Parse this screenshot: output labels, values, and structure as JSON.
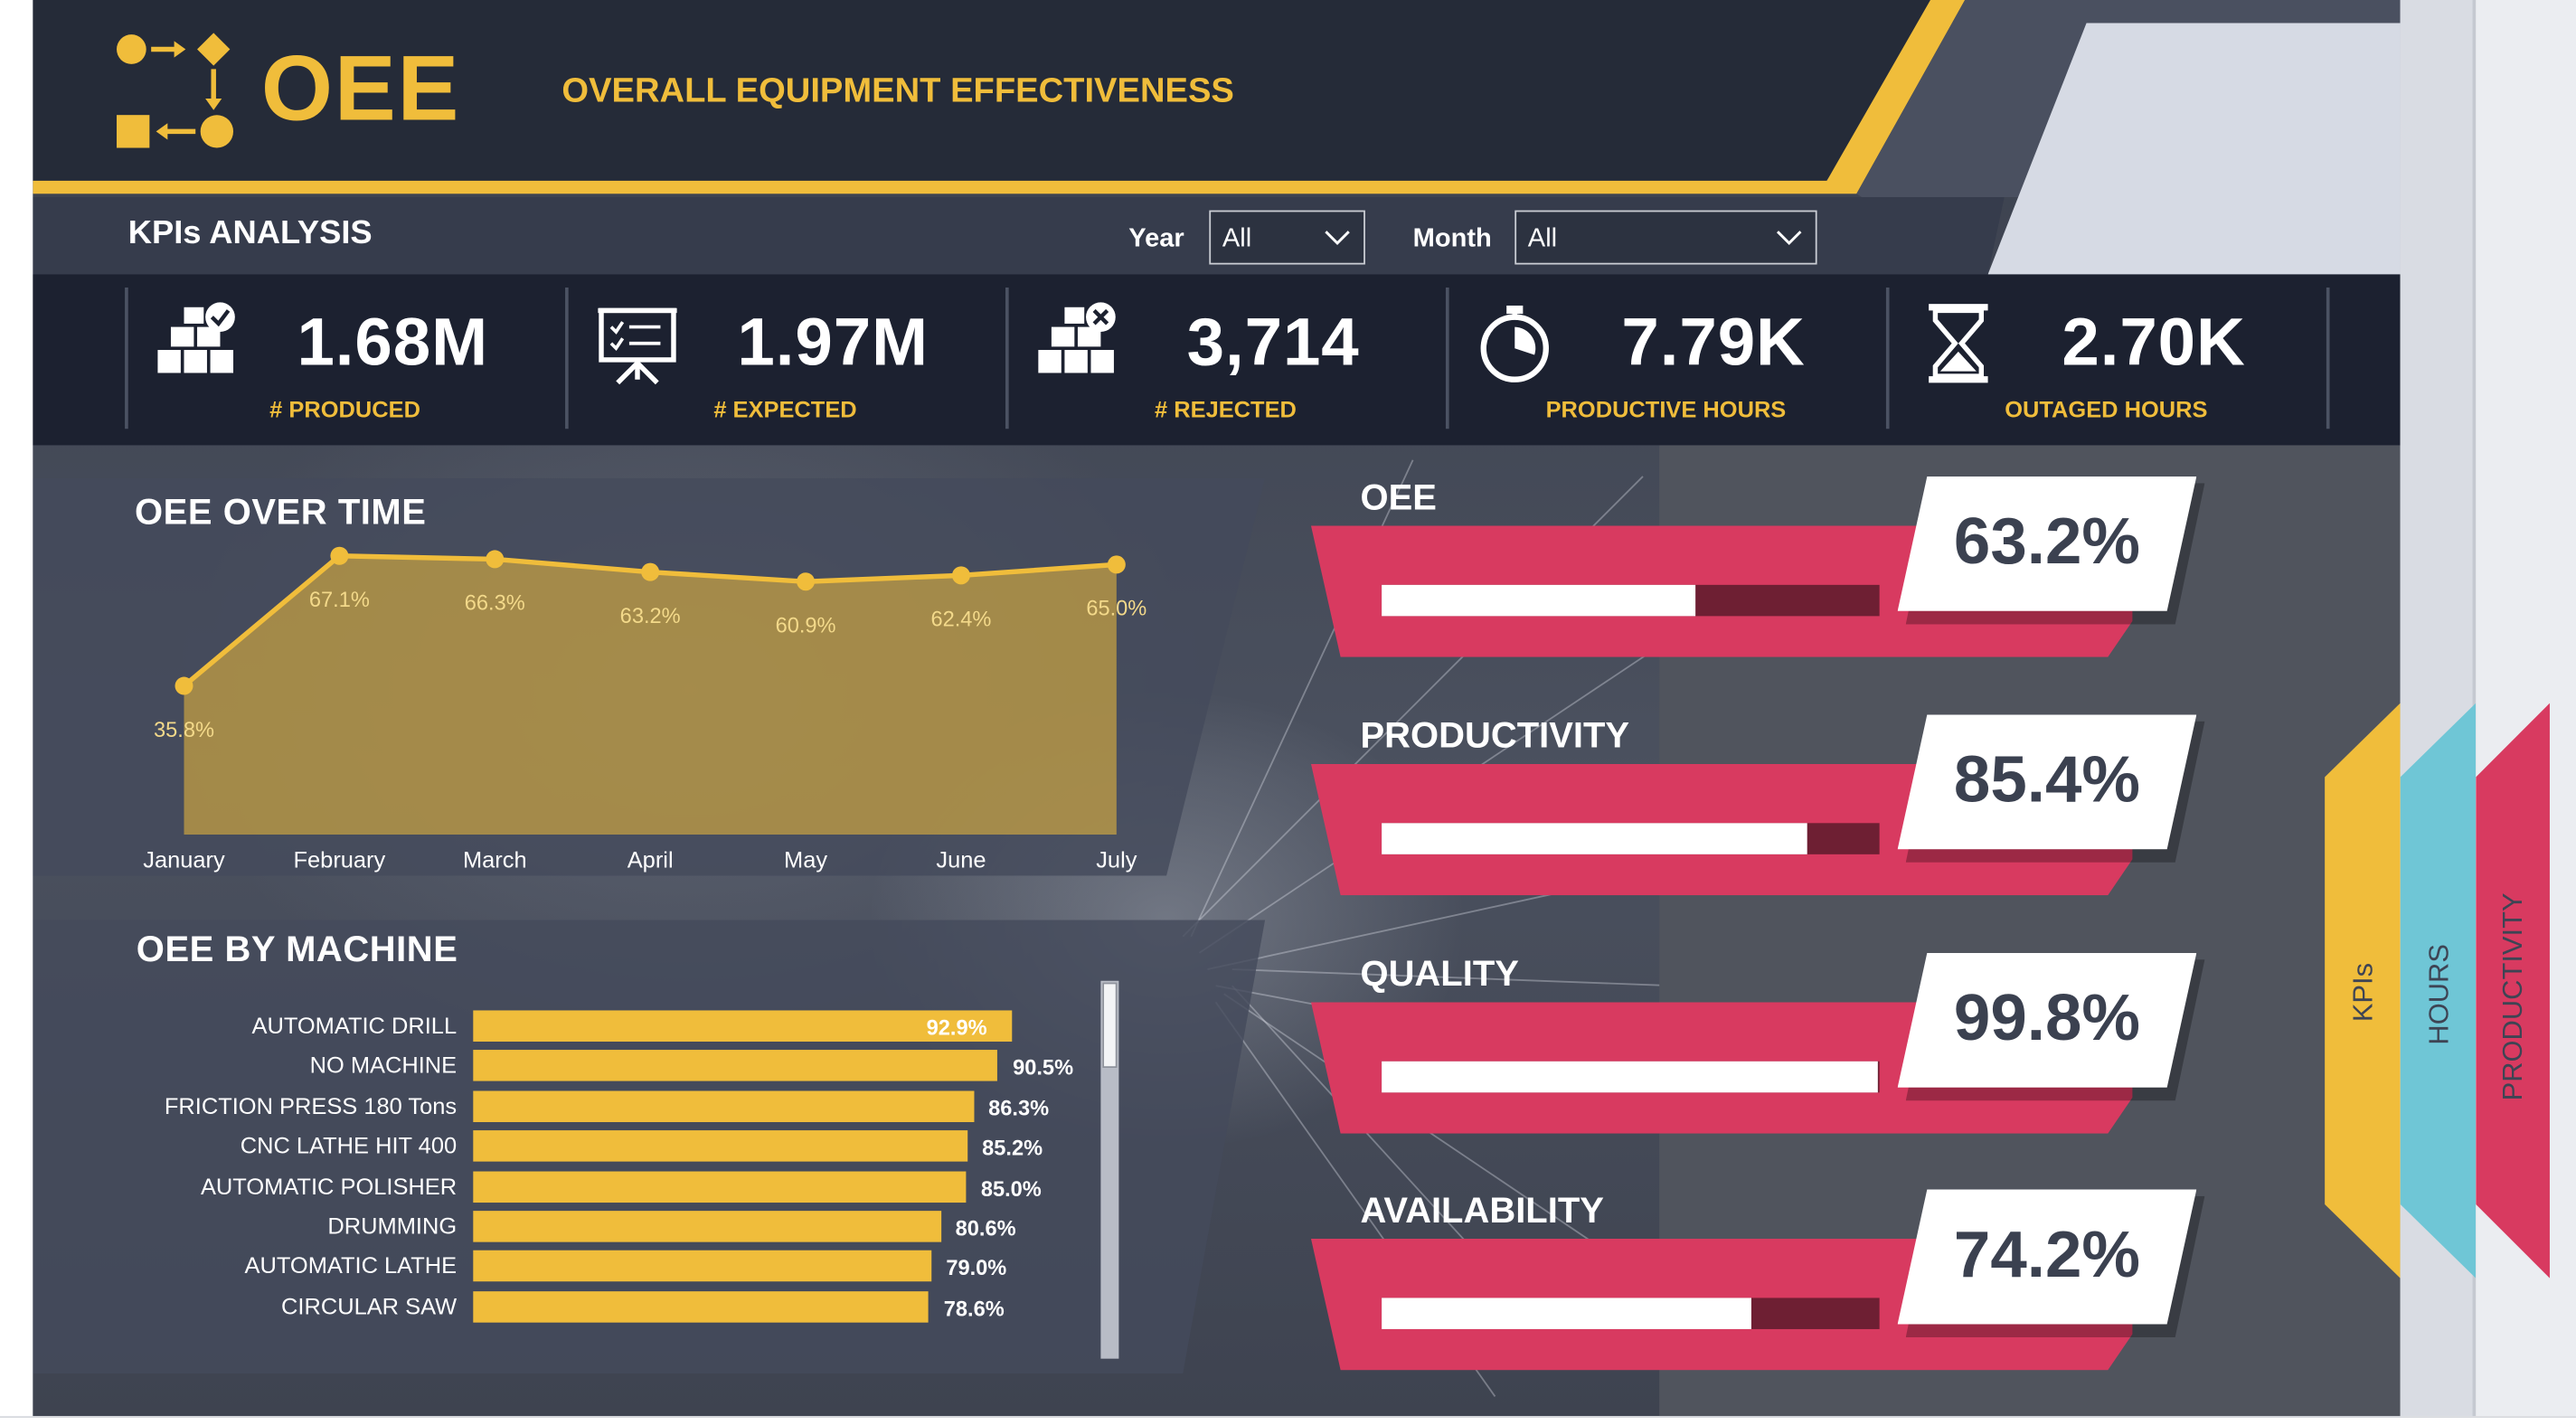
{
  "header": {
    "title": "OEE",
    "subtitle": "OVERALL EQUIPMENT  EFFECTIVENESS"
  },
  "filters": {
    "section_title": "KPIs ANALYSIS",
    "year_label": "Year",
    "year_value": "All",
    "month_label": "Month",
    "month_value": "All"
  },
  "kpis": [
    {
      "value": "1.68M",
      "label": "# PRODUCED",
      "icon": "boxes-check-icon"
    },
    {
      "value": "1.97M",
      "label": "# EXPECTED",
      "icon": "presentation-board-icon"
    },
    {
      "value": "3,714",
      "label": "# REJECTED",
      "icon": "boxes-cross-icon"
    },
    {
      "value": "7.79K",
      "label": "PRODUCTIVE HOURS",
      "icon": "stopwatch-icon"
    },
    {
      "value": "2.70K",
      "label": "OUTAGED HOURS",
      "icon": "hourglass-icon"
    }
  ],
  "oee_over_time": {
    "title": "OEE OVER TIME"
  },
  "oee_by_machine": {
    "title": "OEE BY MACHINE"
  },
  "gauges": [
    {
      "title": "OEE",
      "value_label": "63.2%",
      "value": 63.2
    },
    {
      "title": "PRODUCTIVITY",
      "value_label": "85.4%",
      "value": 85.4
    },
    {
      "title": "QUALITY",
      "value_label": "99.8%",
      "value": 99.8
    },
    {
      "title": "AVAILABILITY",
      "value_label": "74.2%",
      "value": 74.2
    }
  ],
  "nav_tabs": [
    {
      "label": "KPIs",
      "color": "#f0bd3b"
    },
    {
      "label": "HOURS",
      "color": "#6fc6d6"
    },
    {
      "label": "PRODUCTIVITY",
      "color": "#d83a60"
    }
  ],
  "colors": {
    "accent": "#f0bd3b",
    "gauge": "#d83a60",
    "dark": "#1c2130"
  },
  "chart_data": [
    {
      "type": "area",
      "title": "OEE OVER TIME",
      "categories": [
        "January",
        "February",
        "March",
        "April",
        "May",
        "June",
        "July"
      ],
      "values": [
        35.8,
        67.1,
        66.3,
        63.2,
        60.9,
        62.4,
        65.0
      ],
      "value_labels": [
        "35.8%",
        "67.1%",
        "66.3%",
        "63.2%",
        "60.9%",
        "62.4%",
        "65.0%"
      ],
      "ylim": [
        0,
        70
      ],
      "xlabel": "",
      "ylabel": ""
    },
    {
      "type": "bar",
      "orientation": "horizontal",
      "title": "OEE BY MACHINE",
      "categories": [
        "AUTOMATIC DRILL",
        "NO MACHINE",
        "FRICTION PRESS 180 Tons",
        "CNC LATHE HIT 400",
        "AUTOMATIC POLISHER",
        "DRUMMING",
        "AUTOMATIC LATHE",
        "CIRCULAR SAW"
      ],
      "values": [
        92.9,
        90.5,
        86.3,
        85.2,
        85.0,
        80.6,
        79.0,
        78.6
      ],
      "value_labels": [
        "92.9%",
        "90.5%",
        "86.3%",
        "85.2%",
        "85.0%",
        "80.6%",
        "79.0%",
        "78.6%"
      ],
      "xlim": [
        0,
        100
      ]
    }
  ]
}
